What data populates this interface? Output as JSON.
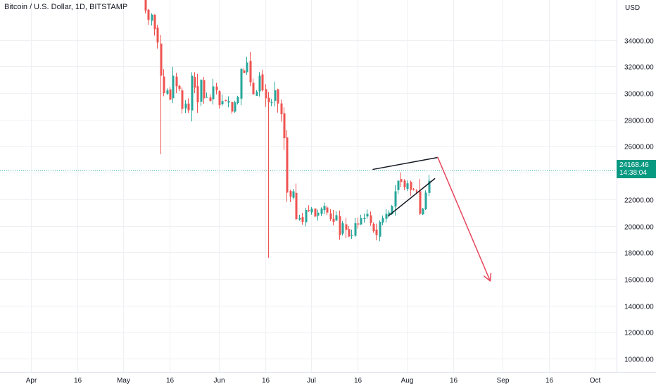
{
  "header": {
    "title": "Bitcoin / U.S. Dollar, 1D, BITSTAMP"
  },
  "price_axis": {
    "currency_label": "USD"
  },
  "last_price": {
    "value": "24168.46",
    "countdown": "14:38:04"
  },
  "colors": {
    "up": "#26a69a",
    "down": "#ef5350",
    "grid": "#eef0f3",
    "price_line": "#26a69a",
    "badge": "#089981",
    "arrow": "#e8475c"
  },
  "chart_data": {
    "type": "candlestick",
    "title": "Bitcoin / U.S. Dollar, 1D, BITSTAMP",
    "xlabel": "",
    "ylabel": "USD",
    "ylim": [
      9000,
      37000
    ],
    "x_range": [
      "2022-03-22",
      "2022-10-08"
    ],
    "y_ticks": [
      "34000.00",
      "32000.00",
      "30000.00",
      "28000.00",
      "26000.00",
      "24000.00",
      "22000.00",
      "20000.00",
      "18000.00",
      "16000.00",
      "14000.00",
      "12000.00",
      "10000.00"
    ],
    "x_ticks": [
      {
        "label": "Apr",
        "date": "2022-04-01"
      },
      {
        "label": "16",
        "date": "2022-04-16"
      },
      {
        "label": "May",
        "date": "2022-05-01"
      },
      {
        "label": "16",
        "date": "2022-05-16"
      },
      {
        "label": "Jun",
        "date": "2022-06-01"
      },
      {
        "label": "16",
        "date": "2022-06-16"
      },
      {
        "label": "Jul",
        "date": "2022-07-01"
      },
      {
        "label": "16",
        "date": "2022-07-16"
      },
      {
        "label": "Aug",
        "date": "2022-08-01"
      },
      {
        "label": "16",
        "date": "2022-08-16"
      },
      {
        "label": "Sep",
        "date": "2022-09-01"
      },
      {
        "label": "16",
        "date": "2022-09-16"
      },
      {
        "label": "Oct",
        "date": "2022-10-01"
      }
    ],
    "last_price": 24168.46,
    "candle_count": 95,
    "closes": [
      37600,
      37100,
      36200,
      35500,
      35900,
      34800,
      33800,
      31300,
      30000,
      30200,
      29500,
      31300,
      30500,
      30300,
      28800,
      29200,
      28700,
      31300,
      30400,
      29300,
      31000,
      29600,
      29700,
      29400,
      30500,
      30200,
      29100,
      29400,
      29400,
      29400,
      28600,
      29300,
      29700,
      31800,
      31500,
      32300,
      30800,
      29900,
      30100,
      31300,
      30200,
      29600,
      29300,
      29300,
      30200,
      29200,
      28400,
      26600,
      22500,
      22200,
      22600,
      20500,
      20600,
      20300,
      21200,
      21100,
      21300,
      20700,
      21000,
      21300,
      21500,
      21000,
      20500,
      20300,
      20800,
      19300,
      20200,
      19700,
      19200,
      19300,
      20200,
      20100,
      20600,
      20600,
      20900,
      20200,
      19600,
      19300,
      20300,
      20600,
      20900,
      21000,
      21500,
      22600,
      23400,
      23300,
      22900,
      23200,
      22700,
      22700,
      22600,
      20900,
      21300,
      22500,
      23400
    ]
  },
  "annotations": {
    "wedge_upper": [
      [
        "2022-07-21",
        24250
      ],
      [
        "2022-08-11",
        25150
      ]
    ],
    "wedge_lower": [
      [
        "2022-07-26",
        20750
      ],
      [
        "2022-08-10",
        23550
      ]
    ],
    "projection_arrow": [
      [
        "2022-08-11",
        25150
      ],
      [
        "2022-08-28",
        15850
      ]
    ]
  }
}
